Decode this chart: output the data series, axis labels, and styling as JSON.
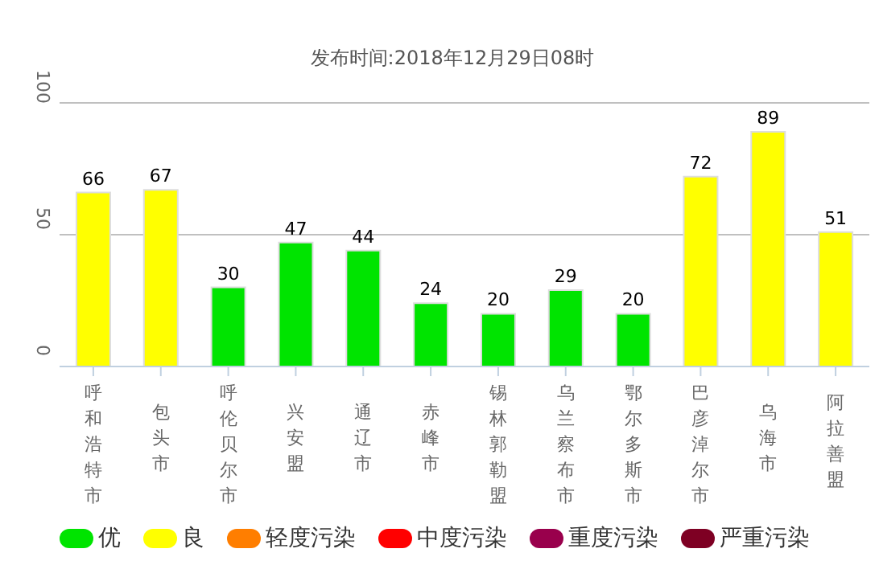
{
  "chart_data": {
    "type": "bar",
    "title": "发布时间:2018年12月29日08时",
    "categories": [
      "呼和浩特市",
      "包头市",
      "呼伦贝尔市",
      "兴安盟",
      "通辽市",
      "赤峰市",
      "锡林郭勒盟",
      "乌兰察布市",
      "鄂尔多斯市",
      "巴彦淖尔市",
      "乌海市",
      "阿拉善盟"
    ],
    "series": [
      {
        "name": "优",
        "color": "#00e400",
        "values": [
          null,
          null,
          30,
          47,
          44,
          24,
          20,
          29,
          20,
          null,
          null,
          null
        ]
      },
      {
        "name": "良",
        "color": "#ffff00",
        "values": [
          66,
          67,
          null,
          null,
          null,
          null,
          null,
          null,
          null,
          72,
          89,
          51
        ]
      },
      {
        "name": "轻度污染",
        "color": "#ff7e00",
        "values": [
          null,
          null,
          null,
          null,
          null,
          null,
          null,
          null,
          null,
          null,
          null,
          null
        ]
      },
      {
        "name": "中度污染",
        "color": "#ff0000",
        "values": [
          null,
          null,
          null,
          null,
          null,
          null,
          null,
          null,
          null,
          null,
          null,
          null
        ]
      },
      {
        "name": "重度污染",
        "color": "#99004c",
        "values": [
          null,
          null,
          null,
          null,
          null,
          null,
          null,
          null,
          null,
          null,
          null,
          null
        ]
      },
      {
        "name": "严重污染",
        "color": "#7e0023",
        "values": [
          null,
          null,
          null,
          null,
          null,
          null,
          null,
          null,
          null,
          null,
          null,
          null
        ]
      }
    ],
    "stacked": true,
    "ylim": [
      0,
      100
    ],
    "yticks": [
      0,
      50,
      100
    ],
    "grid": "y",
    "legend": "bottom",
    "data_labels": true
  }
}
